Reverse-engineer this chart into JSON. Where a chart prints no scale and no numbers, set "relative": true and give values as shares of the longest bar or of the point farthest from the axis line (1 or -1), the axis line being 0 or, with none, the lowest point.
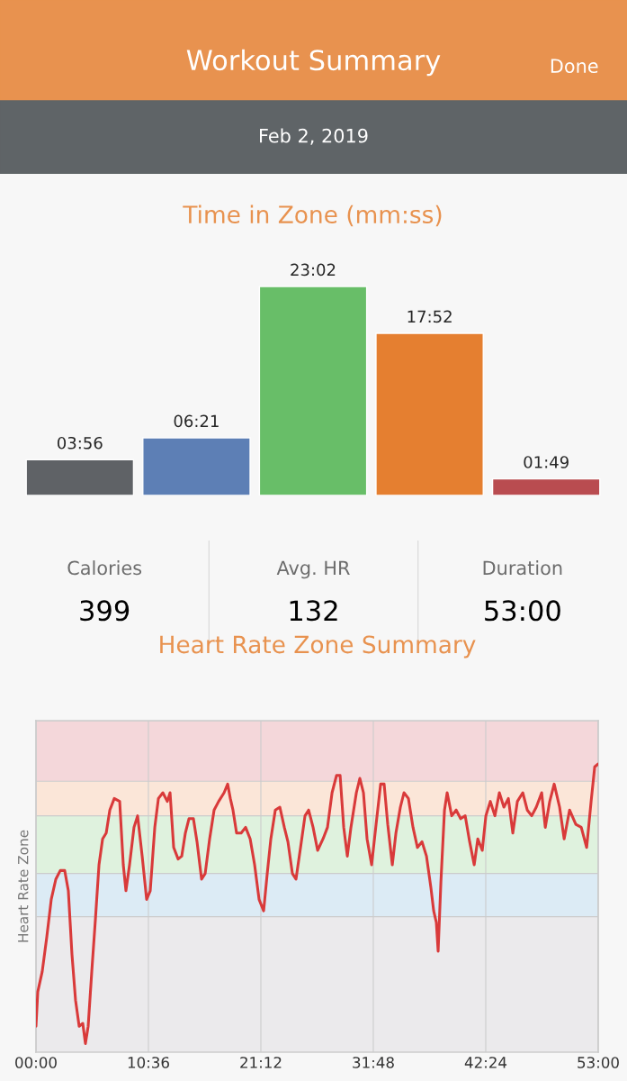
{
  "chart_data": [
    {
      "type": "other",
      "title": "Workout Summary",
      "annotations": [
        "Done",
        "Feb 2, 2019"
      ]
    },
    {
      "type": "bar",
      "title": "Time in Zone (mm:ss)",
      "categories": [
        null,
        null,
        null,
        null,
        null
      ],
      "values": [
        3.93,
        6.35,
        23.03,
        17.87,
        1.82
      ],
      "colors": [
        "#5f6266",
        "#5d7fb5",
        "#68be68",
        "#e57f30",
        "#b94c50"
      ],
      "value_labels": [
        "03:56",
        "06:21",
        "23:02",
        "17:52",
        "01:49"
      ],
      "tick_labels": false
    },
    {
      "type": "other",
      "annotations": [
        "Calories",
        "399",
        "Avg. HR",
        "132",
        "Duration",
        "53:00"
      ]
    },
    {
      "type": "line",
      "title": "Heart Rate Zone Summary",
      "ylabel": "Heart Rate Zone",
      "relative": true,
      "grid": "x",
      "tick_labels": "x",
      "xlim": [
        0,
        53
      ],
      "xticks": [
        {
          "value": 0,
          "label": "00:00"
        },
        {
          "value": 10.6,
          "label": "10:36"
        },
        {
          "value": 21.2,
          "label": "21:12"
        },
        {
          "value": 31.8,
          "label": "31:48"
        },
        {
          "value": 42.4,
          "label": "42:24"
        },
        {
          "value": 53,
          "label": "53:00"
        }
      ],
      "bands": [
        {
          "axis": "y",
          "from": 0,
          "to": 0.47,
          "color": "#ebeaec"
        },
        {
          "axis": "y",
          "from": 0.47,
          "to": 0.62,
          "color": "#dcebf5"
        },
        {
          "axis": "y",
          "from": 0.62,
          "to": 0.82,
          "color": "#dff2de"
        },
        {
          "axis": "y",
          "from": 0.82,
          "to": 0.94,
          "color": "#fbe6d8"
        },
        {
          "axis": "y",
          "from": 0.94,
          "to": 1.15,
          "color": "#f4d7da"
        }
      ],
      "series": [
        {
          "color": "#d93a3a",
          "x": [
            0,
            0.17,
            0.59,
            1.02,
            1.44,
            1.87,
            2.29,
            2.71,
            3.05,
            3.39,
            3.73,
            4.07,
            4.41,
            4.66,
            4.92,
            5.26,
            5.6,
            5.94,
            6.28,
            6.62,
            6.96,
            7.38,
            7.89,
            8.23,
            8.48,
            8.82,
            9.24,
            9.58,
            10.01,
            10.43,
            10.77,
            11.2,
            11.54,
            11.96,
            12.38,
            12.64,
            12.98,
            13.4,
            13.74,
            14.08,
            14.42,
            14.84,
            15.18,
            15.61,
            15.95,
            16.37,
            16.79,
            17.22,
            17.73,
            18.07,
            18.32,
            18.57,
            18.91,
            19.34,
            19.76,
            20.19,
            20.61,
            21.03,
            21.46,
            21.8,
            22.14,
            22.56,
            22.99,
            23.41,
            23.75,
            24.17,
            24.51,
            24.94,
            25.36,
            25.7,
            26.12,
            26.55,
            27.06,
            27.48,
            27.91,
            28.33,
            28.67,
            29.01,
            29.35,
            29.69,
            30.2,
            30.53,
            30.87,
            31.21,
            31.64,
            32.06,
            32.49,
            32.82,
            33.16,
            33.59,
            33.93,
            34.35,
            34.69,
            35.11,
            35.54,
            35.96,
            36.39,
            36.81,
            37.23,
            37.49,
            37.74,
            37.91,
            38.17,
            38.51,
            38.76,
            39.19,
            39.61,
            40.03,
            40.46,
            40.88,
            41.31,
            41.65,
            42.07,
            42.41,
            42.83,
            43.26,
            43.68,
            44.11,
            44.53,
            44.95,
            45.38,
            45.89,
            46.31,
            46.73,
            47.16,
            47.67,
            48.01,
            48.43,
            48.85,
            49.36,
            49.79,
            50.3,
            50.89,
            51.4,
            51.91,
            52.33,
            52.67,
            53
          ],
          "values": [
            0.09,
            0.21,
            0.28,
            0.4,
            0.53,
            0.6,
            0.63,
            0.63,
            0.56,
            0.34,
            0.18,
            0.09,
            0.1,
            0.03,
            0.09,
            0.28,
            0.46,
            0.65,
            0.74,
            0.76,
            0.84,
            0.88,
            0.87,
            0.65,
            0.56,
            0.65,
            0.78,
            0.82,
            0.68,
            0.53,
            0.56,
            0.78,
            0.88,
            0.9,
            0.87,
            0.9,
            0.71,
            0.67,
            0.68,
            0.76,
            0.81,
            0.81,
            0.73,
            0.6,
            0.62,
            0.74,
            0.84,
            0.87,
            0.9,
            0.93,
            0.88,
            0.84,
            0.76,
            0.76,
            0.78,
            0.74,
            0.65,
            0.53,
            0.49,
            0.62,
            0.74,
            0.84,
            0.85,
            0.78,
            0.73,
            0.62,
            0.6,
            0.71,
            0.82,
            0.84,
            0.78,
            0.7,
            0.74,
            0.78,
            0.9,
            0.96,
            0.96,
            0.78,
            0.68,
            0.78,
            0.9,
            0.95,
            0.9,
            0.74,
            0.65,
            0.79,
            0.93,
            0.93,
            0.79,
            0.65,
            0.76,
            0.85,
            0.9,
            0.88,
            0.78,
            0.71,
            0.73,
            0.68,
            0.57,
            0.49,
            0.45,
            0.35,
            0.59,
            0.84,
            0.9,
            0.82,
            0.84,
            0.81,
            0.82,
            0.73,
            0.65,
            0.74,
            0.7,
            0.82,
            0.87,
            0.82,
            0.9,
            0.85,
            0.88,
            0.76,
            0.87,
            0.9,
            0.84,
            0.82,
            0.85,
            0.9,
            0.78,
            0.87,
            0.93,
            0.85,
            0.74,
            0.84,
            0.79,
            0.78,
            0.71,
            0.87,
            0.99,
            1
          ]
        }
      ]
    }
  ]
}
